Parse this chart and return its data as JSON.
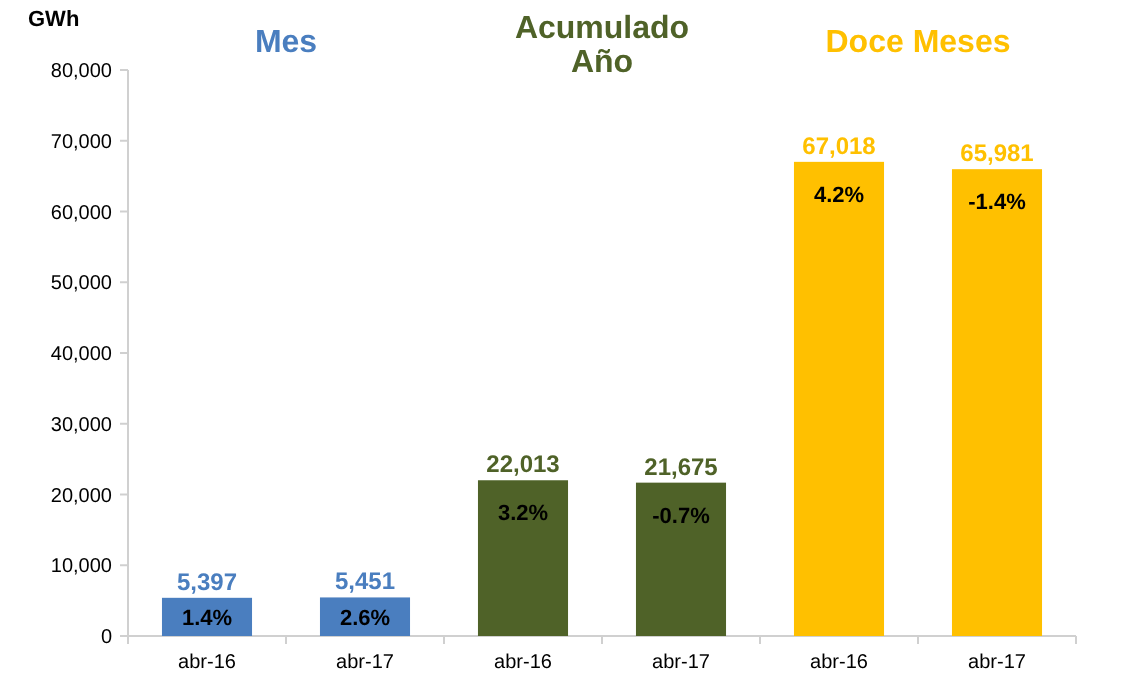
{
  "chart_data": {
    "type": "bar",
    "ylabel": "GWh",
    "categories": [
      "abr-16",
      "abr-17",
      "abr-16",
      "abr-17",
      "abr-16",
      "abr-17"
    ],
    "values": [
      5397,
      5451,
      22013,
      21675,
      67018,
      65981
    ],
    "colors": [
      "#4a7ebf",
      "#4a7ebf",
      "#4f6228",
      "#4f6228",
      "#ffc000",
      "#ffc000"
    ],
    "value_labels": [
      "5,397",
      "5,451",
      "22,013",
      "21,675",
      "67,018",
      "65,981"
    ],
    "annotations": [
      "Mes",
      "Acumulado Año",
      "Doce Meses",
      "1.4%",
      "2.6%",
      "3.2%",
      "-0.7%",
      "4.2%",
      "-1.4%"
    ],
    "ylim": [
      0,
      80000
    ],
    "yticks": [
      {
        "value": 0,
        "label": "0"
      },
      {
        "value": 10000,
        "label": "10,000"
      },
      {
        "value": 20000,
        "label": "20,000"
      },
      {
        "value": 30000,
        "label": "30,000"
      },
      {
        "value": 40000,
        "label": "40,000"
      },
      {
        "value": 50000,
        "label": "50,000"
      },
      {
        "value": 60000,
        "label": "60,000"
      },
      {
        "value": 70000,
        "label": "70,000"
      },
      {
        "value": 80000,
        "label": "80,000"
      }
    ],
    "grid": false
  }
}
